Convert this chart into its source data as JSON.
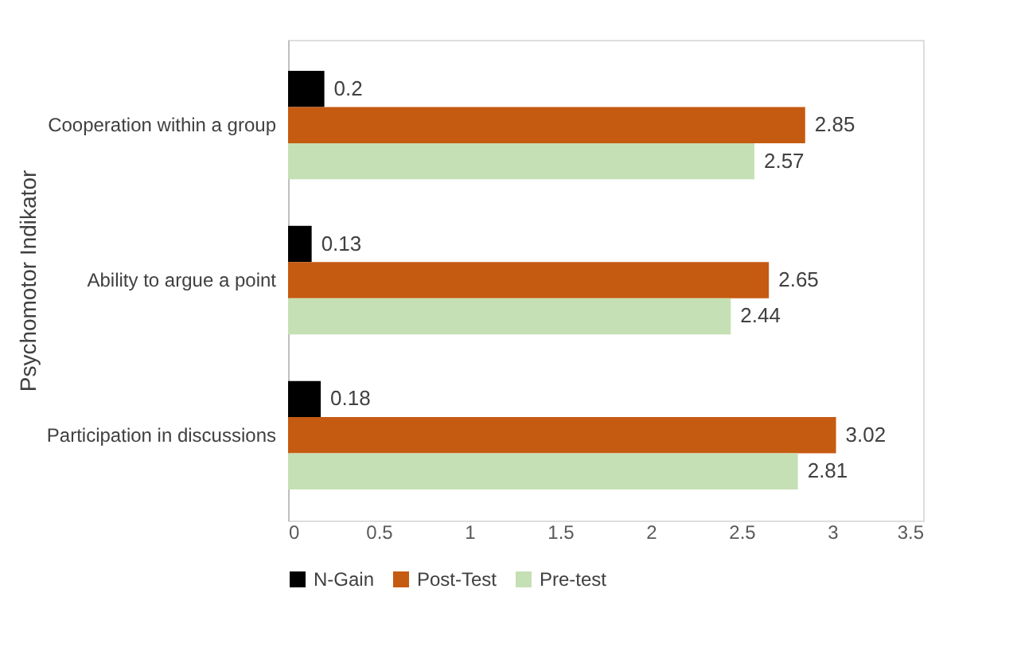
{
  "chart_data": {
    "type": "bar",
    "orientation": "horizontal",
    "ylabel": "Psychomotor Indikator",
    "categories": [
      "Cooperation within a group",
      "Ability to argue a point",
      "Participation in discussions"
    ],
    "series": [
      {
        "name": "N-Gain",
        "color": "#000000",
        "values": [
          0.2,
          0.13,
          0.18
        ]
      },
      {
        "name": "Post-Test",
        "color": "#c55a11",
        "values": [
          2.85,
          2.65,
          3.02
        ]
      },
      {
        "name": "Pre-test",
        "color": "#c5e0b4",
        "values": [
          2.57,
          2.44,
          2.81
        ]
      }
    ],
    "xlim": [
      0,
      3.5
    ],
    "xticks": [
      0,
      0.5,
      1,
      1.5,
      2,
      2.5,
      3,
      3.5
    ],
    "grid": false,
    "legend": "bottom",
    "data_labels": true
  }
}
